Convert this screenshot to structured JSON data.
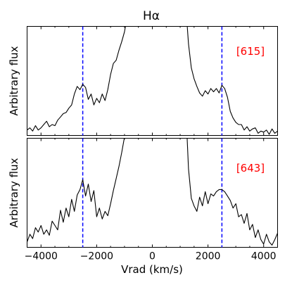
{
  "chart_data": {
    "type": "line",
    "title": "Hα",
    "xlabel": "Vrad (km/s)",
    "xlim": [
      -4500,
      4500
    ],
    "xticks": [
      "−4000",
      "−2000",
      "0",
      "2000",
      "4000"
    ],
    "xtick_values": [
      -4000,
      -2000,
      0,
      2000,
      4000
    ],
    "vlines": [
      -2500,
      2500
    ],
    "colors": {
      "curve": "#000000",
      "vline": "#0000ff",
      "annotation": "#ff0000"
    },
    "panels": [
      {
        "ylabel": "Arbitrary flux",
        "annotation": "[615]",
        "ylim": [
          0,
          1
        ],
        "series": [
          {
            "x": [
              -4500,
              -4400,
              -4300,
              -4200,
              -4100,
              -4000,
              -3900,
              -3800,
              -3700,
              -3600,
              -3500,
              -3400,
              -3300,
              -3200,
              -3100,
              -3000,
              -2900,
              -2800,
              -2700,
              -2600,
              -2500,
              -2400,
              -2300,
              -2200,
              -2100,
              -2000,
              -1900,
              -1800,
              -1700,
              -1600,
              -1500,
              -1400,
              -1300,
              -1200,
              -1100,
              -1000,
              -950
            ],
            "y": [
              0.05,
              0.07,
              0.04,
              0.09,
              0.05,
              0.07,
              0.1,
              0.13,
              0.08,
              0.1,
              0.09,
              0.14,
              0.17,
              0.2,
              0.21,
              0.25,
              0.28,
              0.38,
              0.45,
              0.42,
              0.47,
              0.44,
              0.33,
              0.38,
              0.28,
              0.34,
              0.3,
              0.38,
              0.32,
              0.42,
              0.56,
              0.66,
              0.69,
              0.78,
              0.86,
              0.95,
              1.02
            ]
          },
          {
            "x": [
              1250,
              1300,
              1400,
              1500,
              1600,
              1700,
              1800,
              1900,
              2000,
              2100,
              2200,
              2300,
              2400,
              2500,
              2600,
              2700,
              2800,
              2900,
              3000,
              3100,
              3200,
              3300,
              3400,
              3500,
              3600,
              3700,
              3800,
              3900,
              4000,
              4100,
              4200,
              4300,
              4400,
              4500
            ],
            "y": [
              1.02,
              0.84,
              0.62,
              0.52,
              0.45,
              0.39,
              0.36,
              0.41,
              0.38,
              0.43,
              0.4,
              0.43,
              0.39,
              0.46,
              0.43,
              0.35,
              0.22,
              0.16,
              0.12,
              0.1,
              0.1,
              0.05,
              0.08,
              0.04,
              0.06,
              0.07,
              0.02,
              0.04,
              0.03,
              0.05,
              0.01,
              0.06,
              0.02,
              0.04
            ]
          }
        ]
      },
      {
        "ylabel": "Arbitrary flux",
        "annotation": "[643]",
        "ylim": [
          0,
          1
        ],
        "series": [
          {
            "x": [
              -4500,
              -4400,
              -4300,
              -4200,
              -4100,
              -4000,
              -3900,
              -3800,
              -3700,
              -3600,
              -3500,
              -3400,
              -3300,
              -3200,
              -3100,
              -3000,
              -2900,
              -2800,
              -2700,
              -2600,
              -2500,
              -2400,
              -2300,
              -2200,
              -2100,
              -2000,
              -1900,
              -1800,
              -1700,
              -1600,
              -1500,
              -1400,
              -1300,
              -1200,
              -1100,
              -1000
            ],
            "y": [
              0.05,
              0.12,
              0.08,
              0.18,
              0.14,
              0.2,
              0.12,
              0.16,
              0.11,
              0.24,
              0.2,
              0.16,
              0.34,
              0.23,
              0.36,
              0.28,
              0.44,
              0.33,
              0.48,
              0.53,
              0.62,
              0.47,
              0.58,
              0.42,
              0.52,
              0.28,
              0.36,
              0.26,
              0.33,
              0.29,
              0.4,
              0.52,
              0.63,
              0.74,
              0.87,
              1.01
            ]
          },
          {
            "x": [
              1250,
              1300,
              1400,
              1500,
              1600,
              1700,
              1800,
              1900,
              2000,
              2100,
              2200,
              2300,
              2400,
              2500,
              2600,
              2700,
              2800,
              2900,
              3000,
              3100,
              3200,
              3300,
              3400,
              3500,
              3600,
              3700,
              3800,
              3900,
              4000,
              4100,
              4200,
              4300,
              4400,
              4500
            ],
            "y": [
              1.01,
              0.72,
              0.45,
              0.38,
              0.33,
              0.46,
              0.38,
              0.51,
              0.4,
              0.49,
              0.47,
              0.51,
              0.53,
              0.53,
              0.51,
              0.47,
              0.43,
              0.36,
              0.4,
              0.28,
              0.3,
              0.22,
              0.31,
              0.16,
              0.21,
              0.09,
              0.16,
              0.07,
              0.03,
              0.12,
              0.05,
              0.02,
              0.07,
              0.13
            ]
          }
        ]
      }
    ]
  }
}
